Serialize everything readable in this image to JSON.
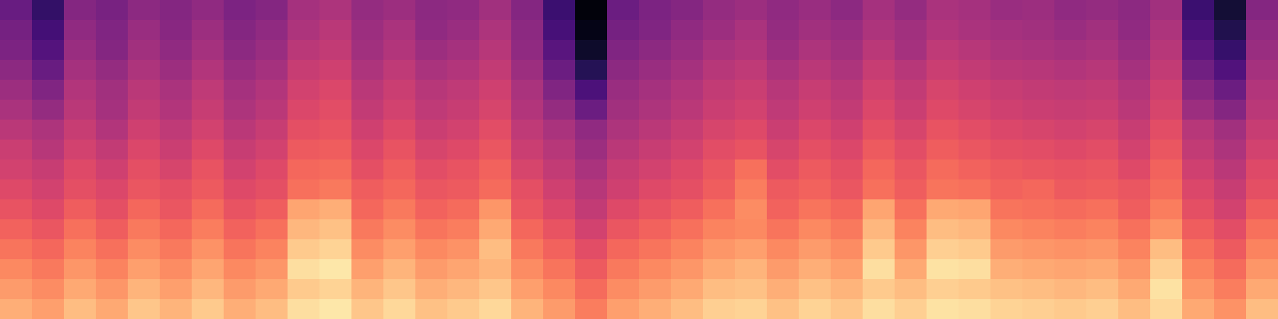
{
  "chart_data": {
    "type": "heatmap",
    "color": "magma",
    "tick_labels": false,
    "zlim": [
      0,
      100
    ],
    "values": [
      [
        31,
        18,
        38,
        35,
        40,
        38,
        41,
        36,
        38,
        46,
        48,
        42,
        44,
        40,
        41,
        45,
        38,
        20,
        2,
        32,
        36,
        38,
        42,
        44,
        41,
        43,
        40,
        46,
        42,
        47,
        46,
        43,
        44,
        41,
        42,
        40,
        45,
        20,
        10,
        38
      ],
      [
        34,
        22,
        41,
        37,
        43,
        39,
        44,
        38,
        41,
        48,
        51,
        44,
        47,
        41,
        43,
        48,
        40,
        23,
        4,
        34,
        37,
        41,
        44,
        47,
        42,
        45,
        43,
        48,
        45,
        49,
        47,
        46,
        45,
        43,
        45,
        41,
        48,
        24,
        14,
        41
      ],
      [
        36,
        26,
        43,
        38,
        45,
        41,
        46,
        40,
        43,
        51,
        53,
        45,
        49,
        44,
        46,
        50,
        41,
        27,
        8,
        37,
        40,
        43,
        47,
        49,
        44,
        48,
        45,
        51,
        46,
        52,
        50,
        48,
        47,
        46,
        47,
        43,
        50,
        28,
        19,
        43
      ],
      [
        40,
        31,
        46,
        42,
        48,
        44,
        49,
        43,
        46,
        54,
        56,
        48,
        52,
        47,
        49,
        53,
        44,
        32,
        15,
        40,
        43,
        46,
        50,
        52,
        47,
        51,
        48,
        54,
        50,
        55,
        53,
        51,
        50,
        49,
        50,
        46,
        53,
        33,
        25,
        46
      ],
      [
        44,
        37,
        49,
        45,
        51,
        47,
        52,
        46,
        49,
        57,
        59,
        51,
        55,
        50,
        52,
        56,
        47,
        37,
        24,
        43,
        46,
        49,
        53,
        55,
        50,
        54,
        51,
        57,
        53,
        58,
        56,
        54,
        53,
        52,
        53,
        49,
        56,
        39,
        32,
        49
      ],
      [
        47,
        42,
        51,
        46,
        53,
        49,
        54,
        48,
        51,
        59,
        61,
        53,
        57,
        52,
        54,
        58,
        49,
        42,
        32,
        45,
        48,
        51,
        55,
        57,
        52,
        56,
        53,
        59,
        55,
        60,
        58,
        56,
        55,
        54,
        55,
        51,
        58,
        44,
        38,
        51
      ],
      [
        51,
        48,
        54,
        49,
        56,
        52,
        57,
        51,
        54,
        62,
        63,
        56,
        60,
        55,
        57,
        61,
        52,
        47,
        41,
        48,
        51,
        54,
        58,
        60,
        55,
        59,
        56,
        62,
        58,
        63,
        61,
        59,
        58,
        57,
        58,
        54,
        61,
        50,
        45,
        54
      ],
      [
        55,
        50,
        57,
        53,
        59,
        55,
        60,
        54,
        57,
        65,
        66,
        59,
        63,
        58,
        60,
        64,
        55,
        50,
        44,
        51,
        54,
        57,
        61,
        63,
        58,
        62,
        59,
        65,
        61,
        66,
        64,
        62,
        61,
        60,
        61,
        57,
        64,
        53,
        48,
        57
      ],
      [
        57,
        54,
        60,
        56,
        62,
        58,
        63,
        57,
        60,
        68,
        69,
        62,
        66,
        61,
        63,
        67,
        58,
        53,
        47,
        54,
        57,
        60,
        64,
        70,
        61,
        65,
        62,
        68,
        64,
        69,
        67,
        65,
        64,
        63,
        64,
        60,
        67,
        56,
        51,
        60
      ],
      [
        60,
        57,
        62,
        59,
        64,
        62,
        65,
        60,
        62,
        70,
        72,
        66,
        68,
        64,
        65,
        69,
        62,
        56,
        50,
        56,
        60,
        62,
        66,
        73,
        65,
        67,
        64,
        70,
        66,
        71,
        70,
        67,
        68,
        65,
        66,
        64,
        69,
        59,
        54,
        62
      ],
      [
        63,
        60,
        66,
        62,
        68,
        64,
        69,
        63,
        66,
        81,
        83,
        68,
        72,
        67,
        69,
        78,
        64,
        59,
        53,
        60,
        63,
        66,
        70,
        76,
        67,
        71,
        68,
        81,
        70,
        82,
        81,
        71,
        70,
        69,
        70,
        66,
        73,
        62,
        57,
        66
      ],
      [
        67,
        64,
        70,
        66,
        72,
        68,
        73,
        67,
        70,
        85,
        87,
        72,
        76,
        71,
        73,
        82,
        68,
        63,
        57,
        64,
        67,
        70,
        74,
        75,
        71,
        75,
        72,
        85,
        74,
        86,
        85,
        75,
        74,
        73,
        74,
        70,
        77,
        66,
        61,
        70
      ],
      [
        71,
        68,
        74,
        70,
        76,
        72,
        77,
        71,
        74,
        89,
        91,
        76,
        80,
        75,
        77,
        86,
        72,
        67,
        61,
        68,
        71,
        74,
        78,
        80,
        75,
        79,
        76,
        89,
        78,
        90,
        89,
        79,
        78,
        77,
        78,
        74,
        86,
        70,
        65,
        74
      ],
      [
        75,
        72,
        78,
        74,
        80,
        76,
        81,
        75,
        78,
        93,
        95,
        80,
        84,
        79,
        81,
        84,
        76,
        71,
        65,
        72,
        75,
        78,
        82,
        84,
        79,
        83,
        80,
        93,
        82,
        94,
        93,
        83,
        82,
        81,
        82,
        78,
        90,
        74,
        69,
        78
      ],
      [
        79,
        76,
        82,
        78,
        84,
        80,
        85,
        79,
        82,
        89,
        91,
        84,
        88,
        83,
        85,
        88,
        80,
        75,
        69,
        76,
        79,
        82,
        86,
        87,
        83,
        87,
        84,
        89,
        86,
        90,
        89,
        87,
        86,
        85,
        86,
        82,
        94,
        78,
        73,
        82
      ],
      [
        83,
        80,
        86,
        82,
        88,
        84,
        89,
        83,
        86,
        93,
        95,
        88,
        92,
        87,
        89,
        92,
        84,
        79,
        73,
        80,
        83,
        86,
        90,
        91,
        87,
        91,
        88,
        93,
        90,
        94,
        93,
        91,
        90,
        89,
        90,
        86,
        92,
        82,
        77,
        86
      ]
    ]
  }
}
